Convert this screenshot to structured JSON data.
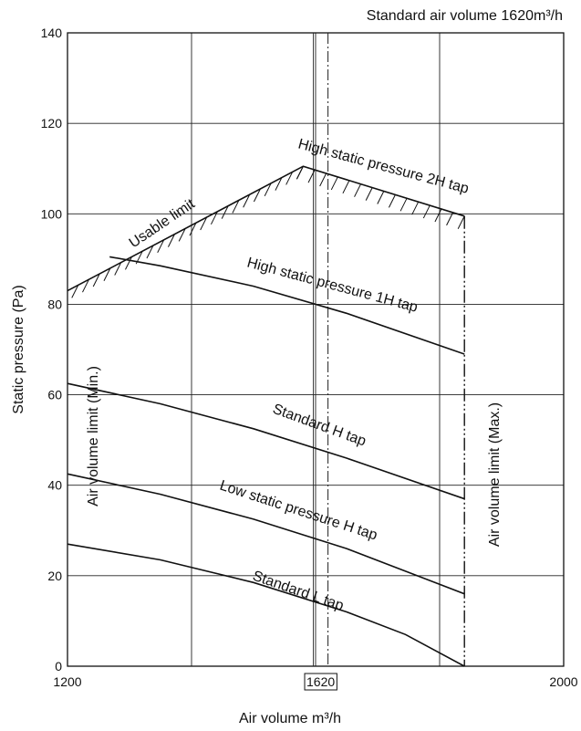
{
  "chart_data": {
    "type": "line",
    "title": "Standard air volume 1620m³/h",
    "xlabel": "Air volume m³/h",
    "ylabel": "Static pressure (Pa)",
    "xlim": [
      1200,
      2000
    ],
    "ylim": [
      0,
      140
    ],
    "x_ticks": [
      "1200",
      "1620",
      "2000"
    ],
    "x_tick_values": [
      1200,
      1620,
      2000
    ],
    "y_ticks": [
      "0",
      "20",
      "40",
      "60",
      "80",
      "100",
      "120",
      "140"
    ],
    "y_tick_values": [
      0,
      20,
      40,
      60,
      80,
      100,
      120,
      140
    ],
    "x_grid": [
      1200,
      1400,
      1600,
      1800,
      2000
    ],
    "y_grid": [
      0,
      20,
      40,
      60,
      80,
      100,
      120,
      140
    ],
    "standard_air_volume": {
      "x": 1620,
      "label": "1620"
    },
    "grid": true,
    "legend": "none",
    "series": [
      {
        "name": "Usable limit",
        "x": [
          1200,
          1580,
          1840,
          1840
        ],
        "y": [
          83,
          110.5,
          99.5,
          69
        ],
        "style": "hatched"
      },
      {
        "name": "High static pressure 2H tap",
        "x": [
          1580,
          1840
        ],
        "y": [
          110.5,
          99.5
        ],
        "style": "hatched"
      },
      {
        "name": "High static pressure 1H tap",
        "x": [
          1268,
          1350,
          1500,
          1650,
          1840
        ],
        "y": [
          90.5,
          88.5,
          84,
          78,
          69
        ],
        "style": "solid"
      },
      {
        "name": "Standard H tap",
        "x": [
          1200,
          1350,
          1500,
          1650,
          1840
        ],
        "y": [
          62.5,
          58,
          52.5,
          46,
          37
        ],
        "style": "solid"
      },
      {
        "name": "Low static pressure H tap",
        "x": [
          1200,
          1350,
          1500,
          1650,
          1840
        ],
        "y": [
          42.5,
          38,
          32.5,
          26,
          16
        ],
        "style": "solid"
      },
      {
        "name": "Standard L tap",
        "x": [
          1200,
          1350,
          1500,
          1650,
          1745,
          1840
        ],
        "y": [
          27,
          23.5,
          18.5,
          12,
          7,
          0
        ],
        "style": "solid"
      }
    ],
    "annotations": [
      {
        "text": "Usable limit"
      },
      {
        "text": "High static pressure 2H tap"
      },
      {
        "text": "High static pressure 1H tap"
      },
      {
        "text": "Standard H tap"
      },
      {
        "text": "Low static pressure H tap"
      },
      {
        "text": "Standard L tap"
      },
      {
        "text": "Air volume limit (Min.)"
      },
      {
        "text": "Air volume limit (Max.)"
      }
    ],
    "limits": {
      "min": {
        "label": "Air volume limit (Min.)"
      },
      "max": {
        "label": "Air volume limit (Max.)",
        "x": 1840
      }
    }
  }
}
